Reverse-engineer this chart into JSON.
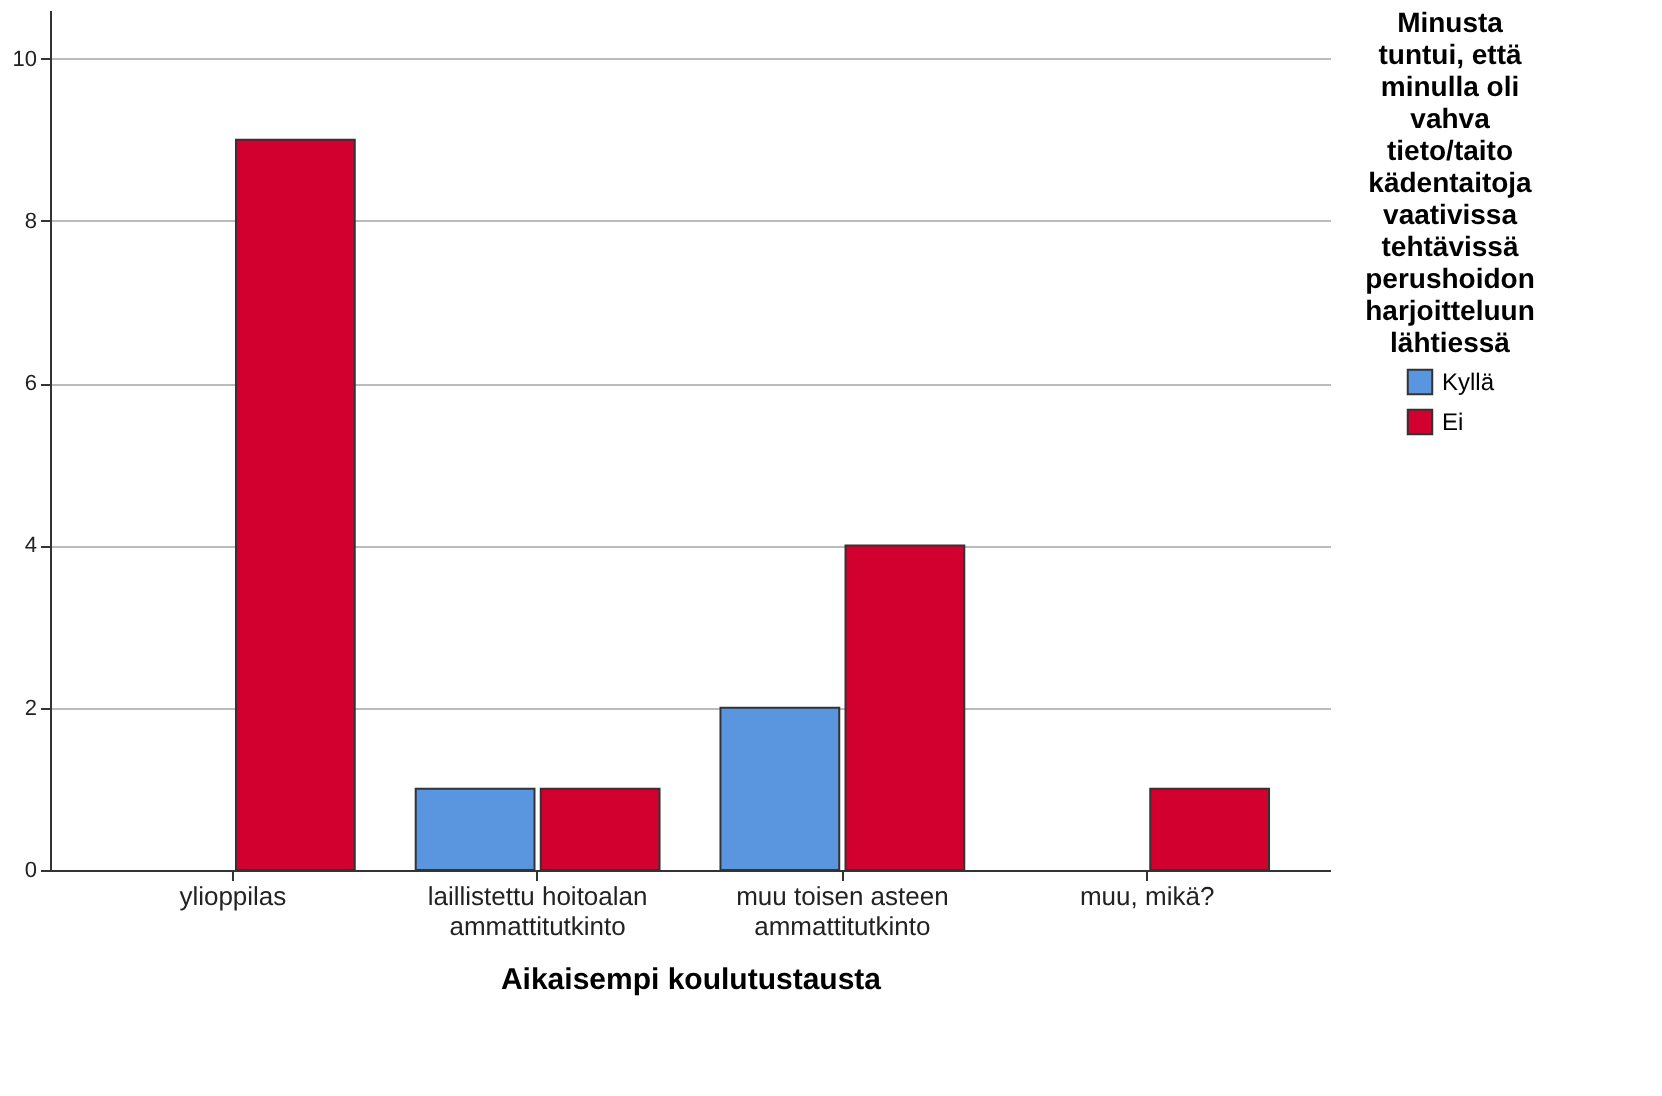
{
  "chart_data": {
    "type": "bar",
    "xlabel": "Aikaisempi koulutustausta",
    "legend_title": "Minusta tuntui, että minulla oli vahva tieto/taito kädentaitoja vaativissa tehtävissä perushoidon harjoitteluun lähtiessä",
    "categories": [
      "ylioppilas",
      "laillistettu hoitoalan ammattitutkinto",
      "muu toisen asteen ammattitutkinto",
      "muu, mikä?"
    ],
    "series": [
      {
        "name": "Kyllä",
        "color": "#5a96e0",
        "values": [
          null,
          1,
          2,
          null
        ]
      },
      {
        "name": "Ei",
        "color": "#d1002f",
        "values": [
          9,
          1,
          4,
          1
        ]
      }
    ],
    "ylim": [
      0,
      10.6
    ],
    "yticks": [
      0,
      2,
      4,
      6,
      8,
      10
    ],
    "grid": "y",
    "legend": "right"
  }
}
